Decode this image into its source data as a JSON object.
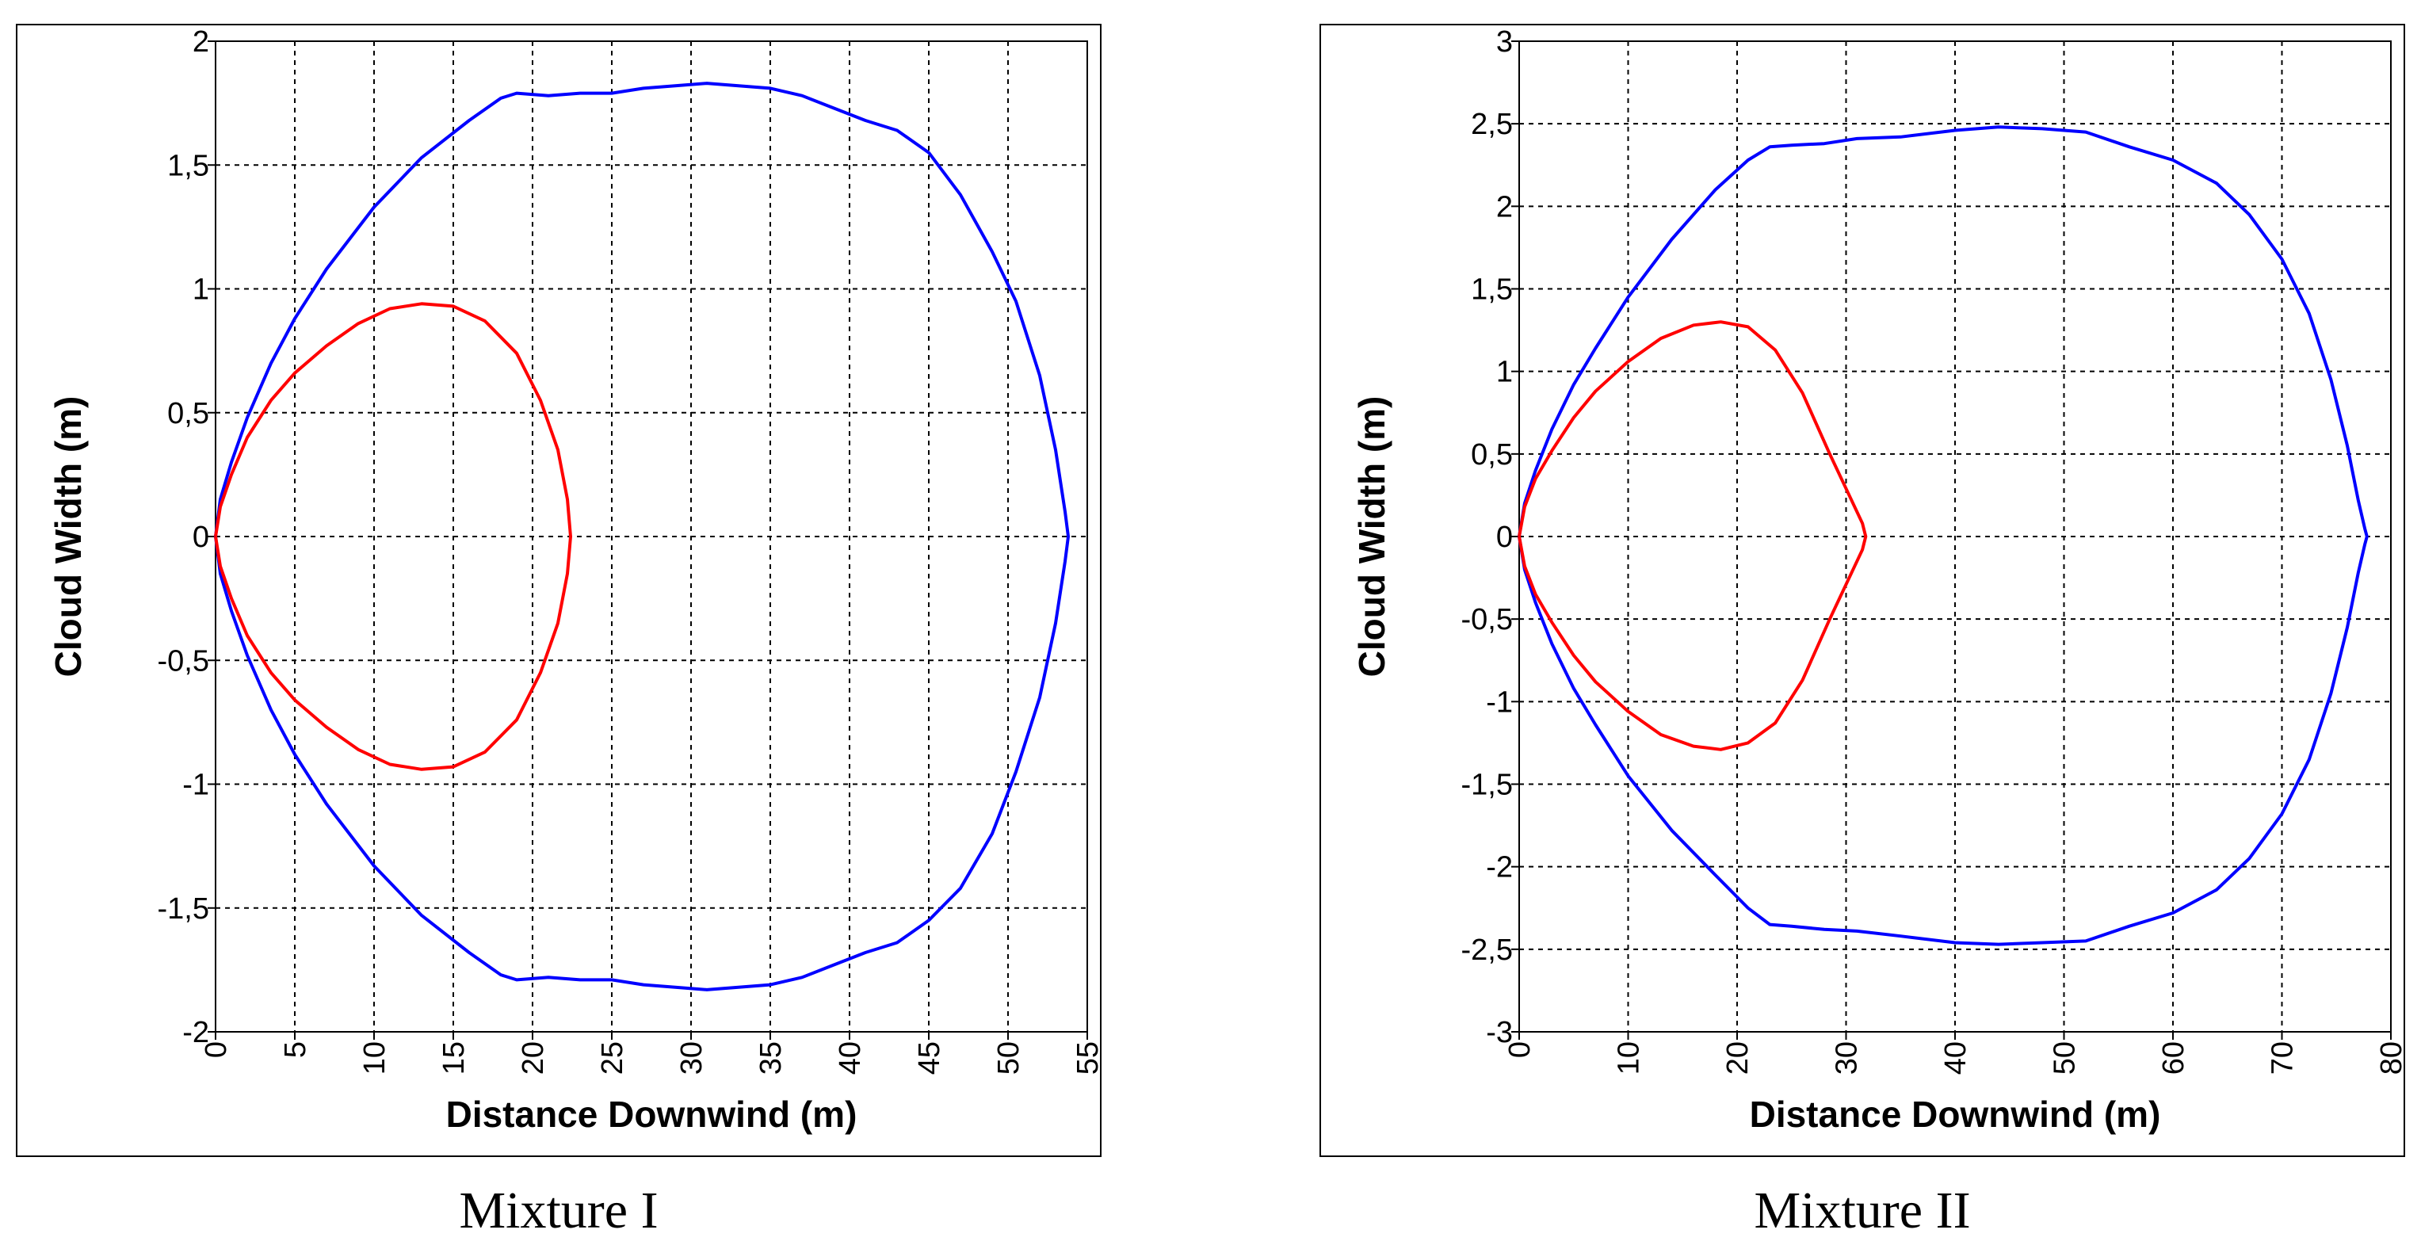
{
  "chart_data": [
    {
      "type": "line",
      "xlabel": "Distance Downwind (m)",
      "ylabel": "Cloud Width (m)",
      "xlim": [
        0,
        55
      ],
      "ylim": [
        -2,
        2
      ],
      "xticks": [
        0,
        5,
        10,
        15,
        20,
        25,
        30,
        35,
        40,
        45,
        50,
        55
      ],
      "yticks": [
        2,
        1.5,
        1,
        0.5,
        0,
        -0.5,
        -1,
        -1.5,
        -2
      ],
      "xtick_labels": [
        "0",
        "5",
        "10",
        "15",
        "20",
        "25",
        "30",
        "35",
        "40",
        "45",
        "50",
        "55"
      ],
      "ytick_labels": [
        "2",
        "1,5",
        "1",
        "0,5",
        "0",
        "-0,5",
        "-1",
        "-1,5",
        "-2"
      ],
      "grid": true,
      "caption": "Mixture I",
      "series": [
        {
          "name": "outer contour",
          "color": "#0000ff",
          "x": [
            0,
            0.3,
            1,
            2,
            3.5,
            5,
            7,
            10,
            13,
            16,
            18,
            19,
            21,
            23,
            25,
            27,
            29,
            31,
            33,
            35,
            37,
            39,
            41,
            43,
            45,
            47,
            49,
            50.5,
            52,
            53,
            53.6,
            53.8,
            53.6,
            53,
            52,
            50.5,
            49,
            47,
            45,
            43,
            41,
            39,
            37,
            35,
            33,
            31,
            29,
            27,
            25,
            23,
            21,
            19,
            18,
            16,
            13,
            10,
            7,
            5,
            3.5,
            2,
            1,
            0.3,
            0
          ],
          "y": [
            0,
            0.15,
            0.3,
            0.48,
            0.7,
            0.88,
            1.08,
            1.33,
            1.53,
            1.68,
            1.77,
            1.79,
            1.78,
            1.79,
            1.79,
            1.81,
            1.82,
            1.83,
            1.82,
            1.81,
            1.78,
            1.73,
            1.68,
            1.64,
            1.55,
            1.38,
            1.15,
            0.95,
            0.65,
            0.35,
            0.1,
            0,
            -0.1,
            -0.35,
            -0.65,
            -0.95,
            -1.2,
            -1.42,
            -1.55,
            -1.64,
            -1.68,
            -1.73,
            -1.78,
            -1.81,
            -1.82,
            -1.83,
            -1.82,
            -1.81,
            -1.79,
            -1.79,
            -1.78,
            -1.79,
            -1.77,
            -1.68,
            -1.53,
            -1.33,
            -1.08,
            -0.88,
            -0.7,
            -0.48,
            -0.3,
            -0.15,
            0
          ]
        },
        {
          "name": "inner contour",
          "color": "#ff0000",
          "x": [
            0,
            0.3,
            1,
            2,
            3.5,
            5,
            7,
            9,
            11,
            13,
            15,
            17,
            19,
            20.5,
            21.6,
            22.2,
            22.4,
            22.2,
            21.6,
            20.5,
            19,
            17,
            15,
            13,
            11,
            9,
            7,
            5,
            3.5,
            2,
            1,
            0.3,
            0
          ],
          "y": [
            0,
            0.12,
            0.25,
            0.4,
            0.55,
            0.66,
            0.77,
            0.86,
            0.92,
            0.94,
            0.93,
            0.87,
            0.74,
            0.55,
            0.35,
            0.15,
            0,
            -0.15,
            -0.35,
            -0.55,
            -0.74,
            -0.87,
            -0.93,
            -0.94,
            -0.92,
            -0.86,
            -0.77,
            -0.66,
            -0.55,
            -0.4,
            -0.25,
            -0.12,
            0
          ]
        }
      ]
    },
    {
      "type": "line",
      "xlabel": "Distance Downwind (m)",
      "ylabel": "Cloud Width (m)",
      "xlim": [
        0,
        80
      ],
      "ylim": [
        -3,
        3
      ],
      "xticks": [
        0,
        10,
        20,
        30,
        40,
        50,
        60,
        70,
        80
      ],
      "yticks": [
        3,
        2.5,
        2,
        1.5,
        1,
        0.5,
        0,
        -0.5,
        -1,
        -1.5,
        -2,
        -2.5,
        -3
      ],
      "xtick_labels": [
        "0",
        "10",
        "20",
        "30",
        "40",
        "50",
        "60",
        "70",
        "80"
      ],
      "ytick_labels": [
        "3",
        "2,5",
        "2",
        "1,5",
        "1",
        "0,5",
        "0",
        "-0,5",
        "-1",
        "-1,5",
        "-2",
        "-2,5",
        "-3"
      ],
      "grid": true,
      "caption": "Mixture II",
      "series": [
        {
          "name": "outer contour",
          "color": "#0000ff",
          "x": [
            0,
            0.5,
            1.5,
            3,
            5,
            7,
            10,
            14,
            18,
            21,
            23,
            25,
            28,
            31,
            35,
            40,
            44,
            48,
            52,
            56,
            60,
            64,
            67,
            70,
            72.5,
            74.5,
            76,
            77,
            77.6,
            77.8,
            77.6,
            77,
            76,
            74.5,
            72.5,
            70,
            67,
            64,
            60,
            56,
            52,
            48,
            44,
            40,
            35,
            31,
            28,
            25,
            23,
            21,
            18,
            14,
            10,
            7,
            5,
            3,
            1.5,
            0.5,
            0
          ],
          "y": [
            0,
            0.2,
            0.4,
            0.65,
            0.92,
            1.14,
            1.45,
            1.8,
            2.1,
            2.28,
            2.36,
            2.37,
            2.38,
            2.41,
            2.42,
            2.46,
            2.48,
            2.47,
            2.45,
            2.36,
            2.28,
            2.14,
            1.95,
            1.68,
            1.35,
            0.95,
            0.55,
            0.22,
            0.05,
            0,
            -0.05,
            -0.22,
            -0.55,
            -0.95,
            -1.35,
            -1.68,
            -1.95,
            -2.14,
            -2.28,
            -2.36,
            -2.45,
            -2.46,
            -2.47,
            -2.46,
            -2.42,
            -2.39,
            -2.38,
            -2.36,
            -2.35,
            -2.25,
            -2.05,
            -1.78,
            -1.45,
            -1.14,
            -0.92,
            -0.65,
            -0.4,
            -0.2,
            0
          ]
        },
        {
          "name": "inner contour",
          "color": "#ff0000",
          "x": [
            0,
            0.5,
            1.5,
            3,
            5,
            7,
            10,
            13,
            16,
            18.5,
            21,
            23.5,
            26,
            28.5,
            30.5,
            31.5,
            31.8,
            31.5,
            30.5,
            28.5,
            26,
            23.5,
            21,
            18.5,
            16,
            13,
            10,
            7,
            5,
            3,
            1.5,
            0.5,
            0
          ],
          "y": [
            0,
            0.18,
            0.35,
            0.52,
            0.72,
            0.88,
            1.06,
            1.2,
            1.28,
            1.3,
            1.27,
            1.13,
            0.87,
            0.5,
            0.22,
            0.08,
            0,
            -0.08,
            -0.22,
            -0.5,
            -0.87,
            -1.13,
            -1.25,
            -1.29,
            -1.27,
            -1.2,
            -1.06,
            -0.88,
            -0.72,
            -0.52,
            -0.35,
            -0.18,
            0
          ]
        }
      ]
    }
  ]
}
